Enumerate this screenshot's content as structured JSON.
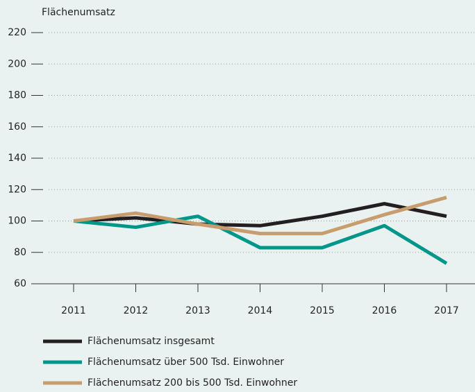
{
  "chart_data": {
    "type": "line",
    "ylabel": "Flächenumsatz",
    "categories": [
      "2011",
      "2012",
      "2013",
      "2014",
      "2015",
      "2016",
      "2017"
    ],
    "series": [
      {
        "name": "Flächenumsatz insgesamt",
        "color": "#231f20",
        "values": [
          100,
          102,
          98,
          97,
          103,
          111,
          103
        ]
      },
      {
        "name": "Flächenumsatz über 500 Tsd. Einwohner",
        "color": "#00968a",
        "values": [
          100,
          96,
          103,
          83,
          83,
          97,
          73
        ]
      },
      {
        "name": "Flächenumsatz 200 bis 500 Tsd. Einwohner",
        "color": "#c89c6c",
        "values": [
          100,
          105,
          98,
          92,
          92,
          104,
          115
        ]
      }
    ],
    "ylim": [
      60,
      220
    ],
    "yticks": [
      60,
      80,
      100,
      120,
      140,
      160,
      180,
      200,
      220
    ],
    "grid": true
  }
}
